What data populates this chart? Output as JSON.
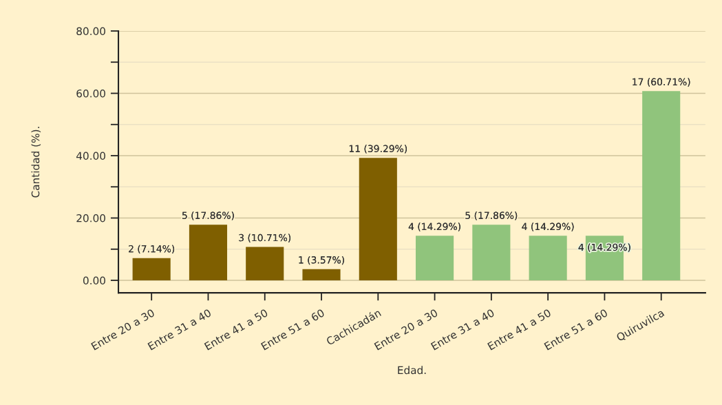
{
  "chart_data": {
    "type": "bar",
    "xlabel": "Edad.",
    "ylabel": "Cantidad (%).",
    "categories": [
      "Entre 20 a 30",
      "Entre 31 a 40",
      "Entre 41 a 50",
      "Entre 51 a 60",
      "Cachicadán",
      "Entre 20 a 30",
      "Entre 31 a 40",
      "Entre 41 a 50",
      "Entre 51 a 60",
      "Quiruvilca"
    ],
    "values": [
      7.14,
      17.86,
      10.71,
      3.57,
      39.29,
      14.29,
      17.86,
      14.29,
      14.29,
      60.71
    ],
    "colors": [
      "#7f5f00",
      "#7f5f00",
      "#7f5f00",
      "#7f5f00",
      "#7f5f00",
      "#90c47c",
      "#90c47c",
      "#90c47c",
      "#90c47c",
      "#90c47c"
    ],
    "value_labels": [
      "2 (7.14%)",
      "5 (17.86%)",
      "3 (10.71%)",
      "1 (3.57%)",
      "11 (39.29%)",
      "4 (14.29%)",
      "5 (17.86%)",
      "4 (14.29%)",
      "4 (14.29%)",
      "17 (60.71%)"
    ],
    "ylim": [
      -4,
      80
    ],
    "yticks": [
      {
        "value": 0,
        "label": "0.00"
      },
      {
        "value": 10,
        "label": null
      },
      {
        "value": 20,
        "label": "20.00"
      },
      {
        "value": 30,
        "label": null
      },
      {
        "value": 40,
        "label": "40.00"
      },
      {
        "value": 50,
        "label": null
      },
      {
        "value": 60,
        "label": "60.00"
      },
      {
        "value": 70,
        "label": null
      },
      {
        "value": 80,
        "label": "80.00"
      }
    ],
    "grid": "y"
  }
}
